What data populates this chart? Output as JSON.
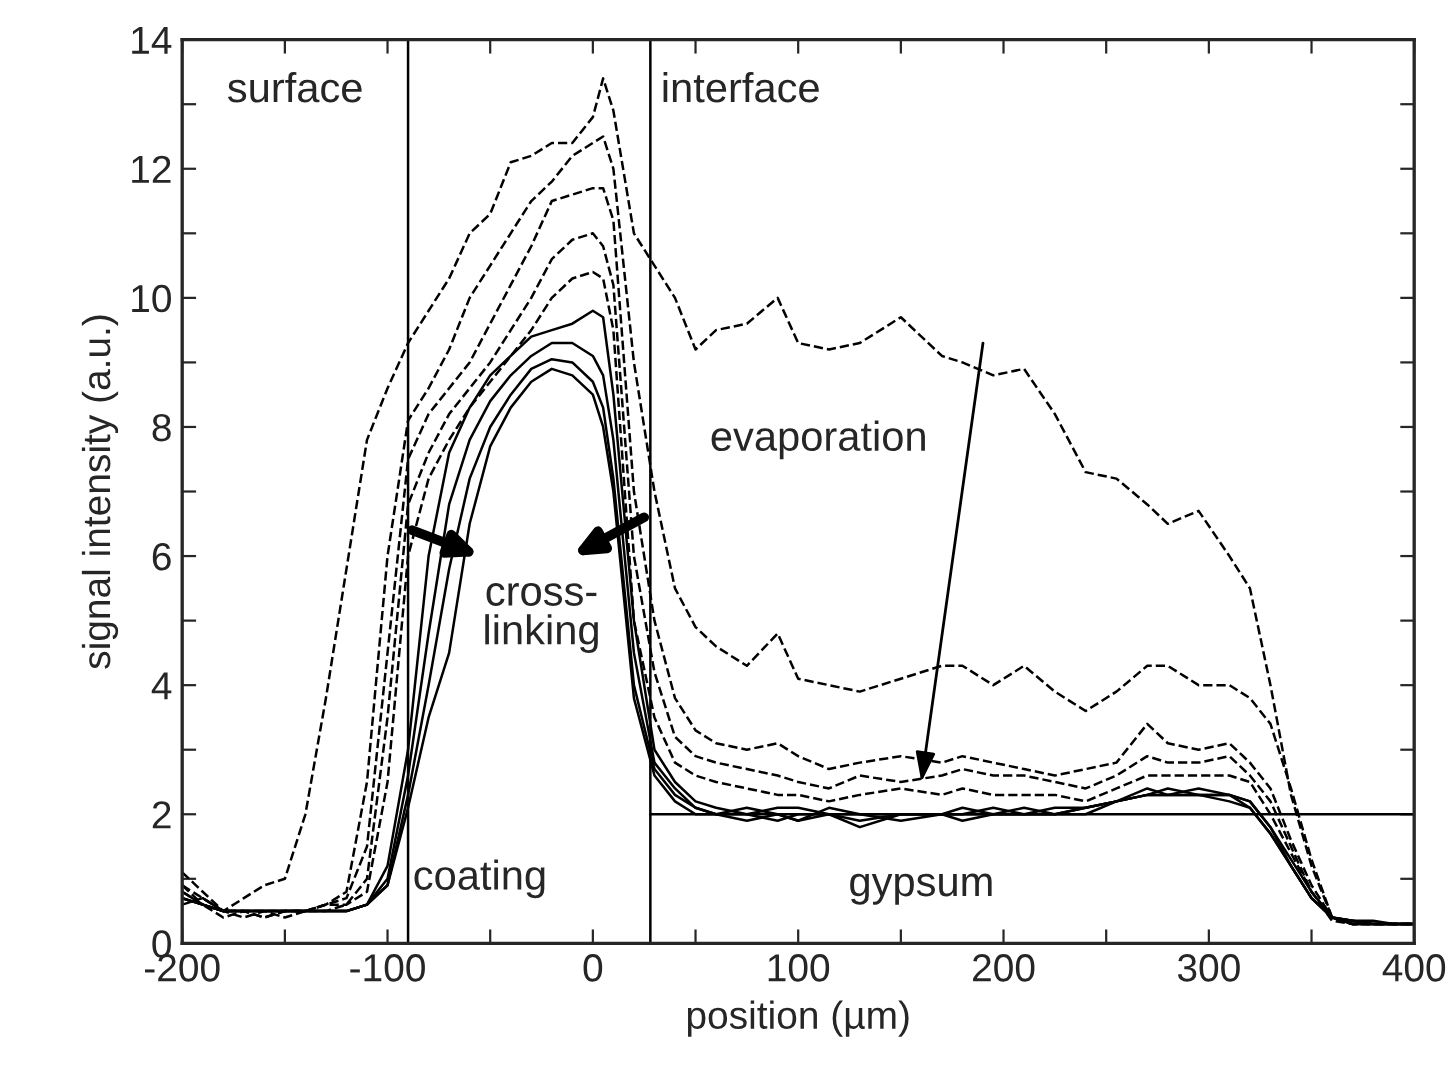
{
  "chart_data": {
    "type": "line",
    "xlabel": "position (µm)",
    "ylabel": "signal intensity (a.u.)",
    "xlim": [
      -200,
      400
    ],
    "ylim": [
      0,
      14
    ],
    "xticks": [
      -200,
      {
        "value": -150,
        "label": null
      },
      -100,
      {
        "value": -50,
        "label": null
      },
      0,
      {
        "value": 50,
        "label": null
      },
      100,
      {
        "value": 150,
        "label": null
      },
      200,
      {
        "value": 250,
        "label": null
      },
      300,
      {
        "value": 350,
        "label": null
      },
      400
    ],
    "yticks": [
      0,
      {
        "value": 1,
        "label": null
      },
      2,
      {
        "value": 3,
        "label": null
      },
      4,
      {
        "value": 5,
        "label": null
      },
      6,
      {
        "value": 7,
        "label": null
      },
      8,
      {
        "value": 9,
        "label": null
      },
      10,
      {
        "value": 11,
        "label": null
      },
      12,
      {
        "value": 13,
        "label": null
      },
      14
    ],
    "grid": false,
    "legend": false,
    "marker": "none",
    "x": [
      -200,
      -190,
      -180,
      -170,
      -160,
      -150,
      -140,
      -130,
      -120,
      -110,
      -100,
      -90,
      -80,
      -70,
      -60,
      -50,
      -40,
      -30,
      -20,
      -10,
      0,
      5,
      10,
      20,
      30,
      40,
      50,
      60,
      75,
      90,
      100,
      115,
      130,
      150,
      170,
      180,
      195,
      210,
      225,
      240,
      255,
      270,
      280,
      295,
      310,
      320,
      330,
      340,
      350,
      360,
      370,
      380,
      390,
      400
    ],
    "series": [
      {
        "color": "#000000",
        "line_style": "dashed",
        "values": [
          1.1,
          0.8,
          0.5,
          0.7,
          0.9,
          1.0,
          2.0,
          3.8,
          5.8,
          7.8,
          8.6,
          9.3,
          9.8,
          10.3,
          11.0,
          11.3,
          12.1,
          12.2,
          12.4,
          12.4,
          12.8,
          13.4,
          12.9,
          11.0,
          10.5,
          10.0,
          9.2,
          9.5,
          9.6,
          10.0,
          9.3,
          9.2,
          9.3,
          9.7,
          9.1,
          9.0,
          8.8,
          8.9,
          8.2,
          7.3,
          7.2,
          6.8,
          6.5,
          6.7,
          6.0,
          5.5,
          4.0,
          2.3,
          1.2,
          0.4,
          0.3,
          0.3,
          0.3,
          0.3
        ]
      },
      {
        "color": "#000000",
        "line_style": "dashed",
        "values": [
          0.9,
          0.7,
          0.5,
          0.5,
          0.5,
          0.5,
          0.5,
          0.6,
          0.8,
          2.5,
          6.0,
          8.1,
          8.6,
          9.2,
          10.0,
          10.5,
          11.0,
          11.5,
          11.8,
          12.2,
          12.4,
          12.5,
          12.0,
          9.0,
          7.0,
          5.5,
          4.9,
          4.6,
          4.3,
          4.8,
          4.1,
          4.0,
          3.9,
          4.1,
          4.3,
          4.3,
          4.0,
          4.3,
          3.9,
          3.6,
          3.9,
          4.3,
          4.3,
          4.0,
          4.0,
          3.8,
          3.4,
          2.4,
          1.3,
          0.4,
          0.3,
          0.3,
          0.3,
          0.3
        ]
      },
      {
        "color": "#000000",
        "line_style": "dashed",
        "values": [
          0.8,
          0.6,
          0.4,
          0.5,
          0.4,
          0.5,
          0.5,
          0.6,
          0.7,
          1.5,
          4.5,
          7.5,
          8.2,
          8.6,
          9.0,
          9.6,
          10.2,
          10.8,
          11.5,
          11.6,
          11.7,
          11.7,
          11.2,
          7.0,
          5.0,
          3.8,
          3.3,
          3.1,
          3.0,
          3.1,
          2.9,
          2.7,
          2.8,
          2.9,
          2.8,
          2.9,
          2.8,
          2.7,
          2.6,
          2.7,
          2.8,
          3.4,
          3.1,
          3.0,
          3.1,
          2.8,
          2.4,
          1.6,
          0.9,
          0.4,
          0.3,
          0.3,
          0.3,
          0.3
        ]
      },
      {
        "color": "#000000",
        "line_style": "dashed",
        "values": [
          0.7,
          0.6,
          0.5,
          0.4,
          0.5,
          0.4,
          0.5,
          0.5,
          0.6,
          1.0,
          3.5,
          6.8,
          7.6,
          8.2,
          8.6,
          9.0,
          9.5,
          10.0,
          10.6,
          10.9,
          11.0,
          10.8,
          10.2,
          6.0,
          4.2,
          3.2,
          2.9,
          2.8,
          2.7,
          2.6,
          2.5,
          2.4,
          2.6,
          2.5,
          2.6,
          2.7,
          2.6,
          2.6,
          2.5,
          2.4,
          2.6,
          2.9,
          2.8,
          2.8,
          2.9,
          2.6,
          2.2,
          1.5,
          0.8,
          0.35,
          0.3,
          0.3,
          0.3,
          0.3
        ]
      },
      {
        "color": "#000000",
        "line_style": "dashed",
        "values": [
          0.9,
          0.6,
          0.5,
          0.5,
          0.4,
          0.5,
          0.5,
          0.6,
          0.6,
          0.8,
          2.5,
          6.0,
          7.2,
          7.8,
          8.3,
          8.7,
          9.1,
          9.5,
          10.0,
          10.3,
          10.4,
          10.3,
          9.5,
          5.0,
          3.5,
          2.8,
          2.6,
          2.5,
          2.4,
          2.3,
          2.3,
          2.2,
          2.3,
          2.4,
          2.3,
          2.4,
          2.3,
          2.3,
          2.3,
          2.2,
          2.4,
          2.6,
          2.6,
          2.6,
          2.6,
          2.5,
          2.0,
          1.4,
          0.8,
          0.4,
          0.3,
          0.3,
          0.3,
          0.3
        ]
      },
      {
        "color": "#000000",
        "line_style": "solid",
        "values": [
          0.7,
          0.6,
          0.5,
          0.5,
          0.5,
          0.5,
          0.5,
          0.5,
          0.5,
          0.6,
          1.2,
          3.0,
          6.0,
          7.6,
          8.3,
          8.8,
          9.1,
          9.4,
          9.5,
          9.6,
          9.8,
          9.7,
          8.5,
          5.0,
          3.0,
          2.5,
          2.2,
          2.1,
          2.0,
          2.1,
          2.1,
          2.0,
          1.9,
          2.0,
          2.0,
          2.0,
          2.0,
          2.1,
          2.0,
          2.0,
          2.2,
          2.3,
          2.4,
          2.3,
          2.3,
          2.2,
          1.8,
          1.3,
          0.8,
          0.4,
          0.35,
          0.35,
          0.3,
          0.3
        ]
      },
      {
        "color": "#000000",
        "line_style": "solid",
        "values": [
          0.8,
          0.6,
          0.5,
          0.5,
          0.5,
          0.5,
          0.5,
          0.5,
          0.5,
          0.6,
          1.0,
          2.6,
          4.8,
          6.8,
          7.8,
          8.4,
          8.8,
          9.1,
          9.3,
          9.3,
          9.1,
          8.8,
          7.8,
          4.5,
          2.8,
          2.4,
          2.1,
          2.0,
          2.1,
          2.0,
          1.9,
          2.0,
          2.0,
          1.9,
          2.0,
          2.1,
          2.0,
          2.0,
          2.1,
          2.1,
          2.2,
          2.4,
          2.3,
          2.4,
          2.3,
          2.2,
          1.8,
          1.2,
          0.7,
          0.4,
          0.35,
          0.3,
          0.3,
          0.3
        ]
      },
      {
        "color": "#000000",
        "line_style": "solid",
        "values": [
          0.6,
          0.7,
          0.5,
          0.5,
          0.5,
          0.5,
          0.5,
          0.5,
          0.5,
          0.6,
          0.9,
          2.3,
          4.0,
          5.8,
          7.2,
          8.0,
          8.5,
          8.9,
          9.05,
          9.0,
          8.7,
          8.3,
          7.2,
          4.0,
          2.7,
          2.3,
          2.1,
          2.0,
          2.0,
          1.9,
          2.0,
          2.0,
          1.8,
          2.0,
          2.0,
          2.0,
          2.1,
          2.0,
          2.0,
          2.1,
          2.2,
          2.3,
          2.3,
          2.3,
          2.3,
          2.1,
          1.7,
          1.2,
          0.7,
          0.4,
          0.35,
          0.3,
          0.3,
          0.3
        ]
      },
      {
        "color": "#000000",
        "line_style": "solid",
        "values": [
          0.7,
          0.6,
          0.5,
          0.5,
          0.5,
          0.5,
          0.5,
          0.5,
          0.5,
          0.6,
          0.9,
          2.1,
          3.5,
          4.5,
          6.5,
          7.7,
          8.3,
          8.7,
          8.9,
          8.8,
          8.5,
          8.0,
          7.0,
          3.8,
          2.6,
          2.2,
          2.0,
          2.0,
          1.9,
          2.0,
          1.9,
          2.1,
          2.0,
          2.0,
          2.0,
          1.9,
          2.0,
          2.0,
          2.0,
          2.1,
          2.2,
          2.3,
          2.3,
          2.3,
          2.2,
          2.1,
          1.7,
          1.2,
          0.7,
          0.4,
          0.3,
          0.3,
          0.3,
          0.3
        ]
      }
    ],
    "ref_lines": [
      {
        "axis": "x",
        "value": -90,
        "color": "#000000"
      },
      {
        "axis": "x",
        "value": 28,
        "color": "#000000"
      },
      {
        "axis": "y",
        "value": 2,
        "color": "#000000"
      }
    ],
    "annotations": [
      "surface",
      "interface",
      "coating",
      "gypsum",
      "evaporation",
      "cross-\nlinking"
    ]
  }
}
